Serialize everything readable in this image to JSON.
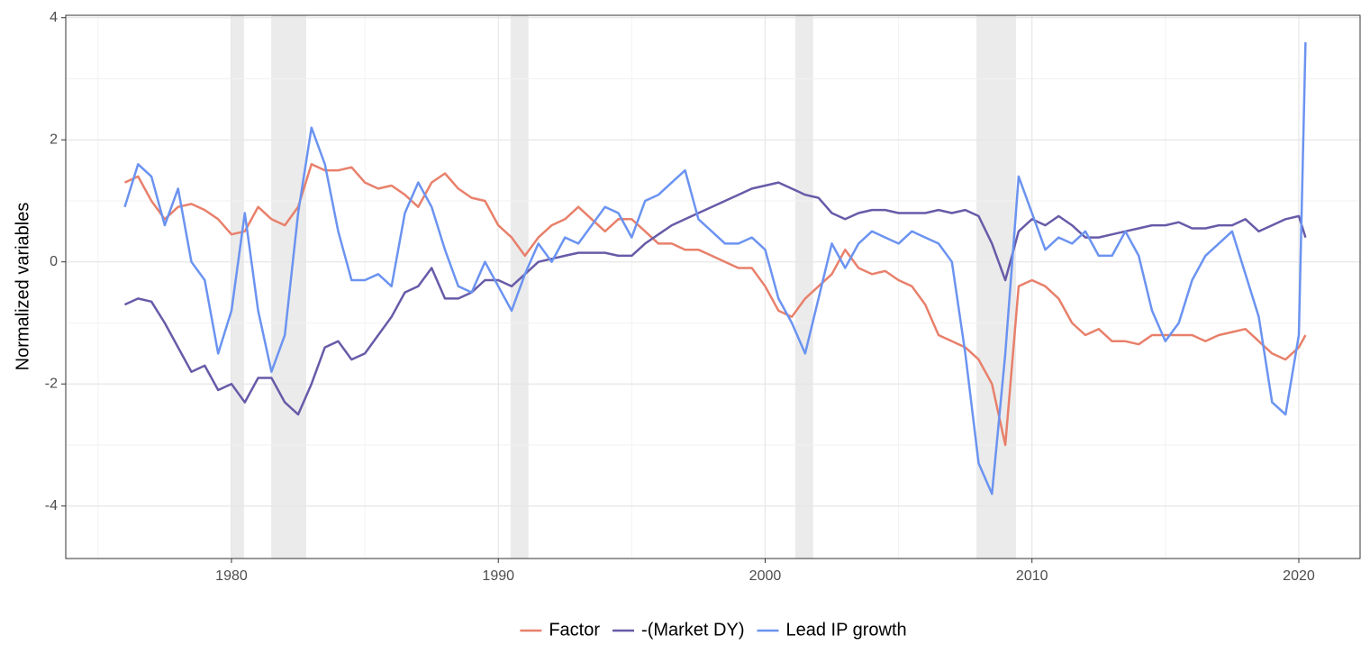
{
  "chart_data": {
    "type": "line",
    "y_label": "Normalized variables",
    "x": [
      1976,
      1976.5,
      1977,
      1977.5,
      1978,
      1978.5,
      1979,
      1979.5,
      1980,
      1980.5,
      1981,
      1981.5,
      1982,
      1982.5,
      1983,
      1983.5,
      1984,
      1984.5,
      1985,
      1985.5,
      1986,
      1986.5,
      1987,
      1987.5,
      1988,
      1988.5,
      1989,
      1989.5,
      1990,
      1990.5,
      1991,
      1991.5,
      1992,
      1992.5,
      1993,
      1993.5,
      1994,
      1994.5,
      1995,
      1995.5,
      1996,
      1996.5,
      1997,
      1997.5,
      1998,
      1998.5,
      1999,
      1999.5,
      2000,
      2000.5,
      2001,
      2001.5,
      2002,
      2002.5,
      2003,
      2003.5,
      2004,
      2004.5,
      2005,
      2005.5,
      2006,
      2006.5,
      2007,
      2007.5,
      2008,
      2008.5,
      2009,
      2009.5,
      2010,
      2010.5,
      2011,
      2011.5,
      2012,
      2012.5,
      2013,
      2013.5,
      2014,
      2014.5,
      2015,
      2015.5,
      2016,
      2016.5,
      2017,
      2017.5,
      2018,
      2018.5,
      2019,
      2019.5,
      2020,
      2020.25
    ],
    "series": [
      {
        "name": "Factor",
        "color": "#e8806b",
        "values": [
          1.3,
          1.4,
          1.0,
          0.7,
          0.9,
          0.95,
          0.85,
          0.7,
          0.45,
          0.5,
          0.9,
          0.7,
          0.6,
          0.9,
          1.6,
          1.5,
          1.5,
          1.55,
          1.3,
          1.2,
          1.25,
          1.1,
          0.9,
          1.3,
          1.45,
          1.2,
          1.05,
          1.0,
          0.6,
          0.4,
          0.1,
          0.4,
          0.6,
          0.7,
          0.9,
          0.7,
          0.5,
          0.7,
          0.7,
          0.5,
          0.3,
          0.3,
          0.2,
          0.2,
          0.1,
          0.0,
          -0.1,
          -0.1,
          -0.4,
          -0.8,
          -0.9,
          -0.6,
          -0.4,
          -0.2,
          0.2,
          -0.1,
          -0.2,
          -0.15,
          -0.3,
          -0.4,
          -0.7,
          -1.2,
          -1.3,
          -1.4,
          -1.6,
          -2.0,
          -3.0,
          -0.4,
          -0.3,
          -0.4,
          -0.6,
          -1.0,
          -1.2,
          -1.1,
          -1.3,
          -1.3,
          -1.35,
          -1.2,
          -1.2,
          -1.2,
          -1.2,
          -1.3,
          -1.2,
          -1.15,
          -1.1,
          -1.3,
          -1.5,
          -1.6,
          -1.4,
          -1.2
        ]
      },
      {
        "name": "-(Market DY)",
        "color": "#675ba8",
        "values": [
          -0.7,
          -0.6,
          -0.65,
          -1.0,
          -1.4,
          -1.8,
          -1.7,
          -2.1,
          -2.0,
          -2.3,
          -1.9,
          -1.9,
          -2.3,
          -2.5,
          -2.0,
          -1.4,
          -1.3,
          -1.6,
          -1.5,
          -1.2,
          -0.9,
          -0.5,
          -0.4,
          -0.1,
          -0.6,
          -0.6,
          -0.5,
          -0.3,
          -0.3,
          -0.4,
          -0.2,
          0.0,
          0.05,
          0.1,
          0.15,
          0.15,
          0.15,
          0.1,
          0.1,
          0.3,
          0.45,
          0.6,
          0.7,
          0.8,
          0.9,
          1.0,
          1.1,
          1.2,
          1.25,
          1.3,
          1.2,
          1.1,
          1.05,
          0.8,
          0.7,
          0.8,
          0.85,
          0.85,
          0.8,
          0.8,
          0.8,
          0.85,
          0.8,
          0.85,
          0.75,
          0.3,
          -0.3,
          0.5,
          0.7,
          0.6,
          0.75,
          0.6,
          0.4,
          0.4,
          0.45,
          0.5,
          0.55,
          0.6,
          0.6,
          0.65,
          0.55,
          0.55,
          0.6,
          0.6,
          0.7,
          0.5,
          0.6,
          0.7,
          0.75,
          0.4
        ]
      },
      {
        "name": "Lead IP growth",
        "color": "#6b93f0",
        "values": [
          0.9,
          1.6,
          1.4,
          0.6,
          1.2,
          0.0,
          -0.3,
          -1.5,
          -0.8,
          0.8,
          -0.8,
          -1.8,
          -1.2,
          0.8,
          2.2,
          1.6,
          0.5,
          -0.3,
          -0.3,
          -0.2,
          -0.4,
          0.8,
          1.3,
          0.9,
          0.2,
          -0.4,
          -0.5,
          0.0,
          -0.4,
          -0.8,
          -0.2,
          0.3,
          0.0,
          0.4,
          0.3,
          0.6,
          0.9,
          0.8,
          0.4,
          1.0,
          1.1,
          1.3,
          1.5,
          0.7,
          0.5,
          0.3,
          0.3,
          0.4,
          0.2,
          -0.6,
          -1.0,
          -1.5,
          -0.6,
          0.3,
          -0.1,
          0.3,
          0.5,
          0.4,
          0.3,
          0.5,
          0.4,
          0.3,
          0.0,
          -1.5,
          -3.3,
          -3.8,
          -1.5,
          1.4,
          0.8,
          0.2,
          0.4,
          0.3,
          0.5,
          0.1,
          0.1,
          0.5,
          0.1,
          -0.8,
          -1.3,
          -1.0,
          -0.3,
          0.1,
          0.3,
          0.5,
          -0.2,
          -0.9,
          -2.3,
          -2.5,
          -1.2,
          3.6
        ]
      }
    ],
    "recessions": [
      [
        1979.97,
        1980.47
      ],
      [
        1981.49,
        1982.8
      ],
      [
        1990.46,
        1991.13
      ],
      [
        2001.13,
        2001.8
      ],
      [
        2007.92,
        2009.4
      ]
    ],
    "recession_color": "#ebebeb",
    "xlim": [
      1973.79,
      2022.33
    ],
    "ylim": [
      -4.86,
      4.04
    ],
    "xticks": [
      1980,
      1990,
      2000,
      2010,
      2020
    ],
    "yticks": [
      -4,
      -2,
      0,
      2,
      4
    ],
    "xminor": [
      1975,
      1985,
      1995,
      2005,
      2015
    ],
    "yminor": [
      -3,
      -1,
      1,
      3
    ],
    "grid": true,
    "legend": "bottom"
  }
}
